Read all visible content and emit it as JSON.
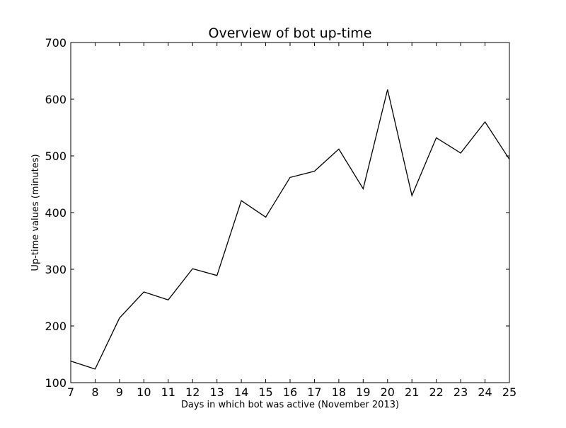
{
  "chart_data": {
    "type": "line",
    "title": "Overview of bot up-time",
    "xlabel": "Days in which bot was active (November 2013)",
    "ylabel": "Up-time values (minutes)",
    "xlim": [
      7,
      25
    ],
    "ylim": [
      100,
      700
    ],
    "xticks": [
      7,
      8,
      9,
      10,
      11,
      12,
      13,
      14,
      15,
      16,
      17,
      18,
      19,
      20,
      21,
      22,
      23,
      24,
      25
    ],
    "yticks": [
      100,
      200,
      300,
      400,
      500,
      600,
      700
    ],
    "grid": false,
    "series": [
      {
        "x": [
          7,
          8,
          9,
          10,
          11,
          12,
          13,
          14,
          15,
          16,
          17,
          18,
          19,
          20,
          21,
          22,
          23,
          24,
          25
        ],
        "y": [
          138,
          124,
          214,
          260,
          246,
          301,
          289,
          421,
          392,
          462,
          473,
          512,
          442,
          617,
          430,
          532,
          505,
          560,
          494
        ],
        "color": "#000000"
      }
    ]
  }
}
